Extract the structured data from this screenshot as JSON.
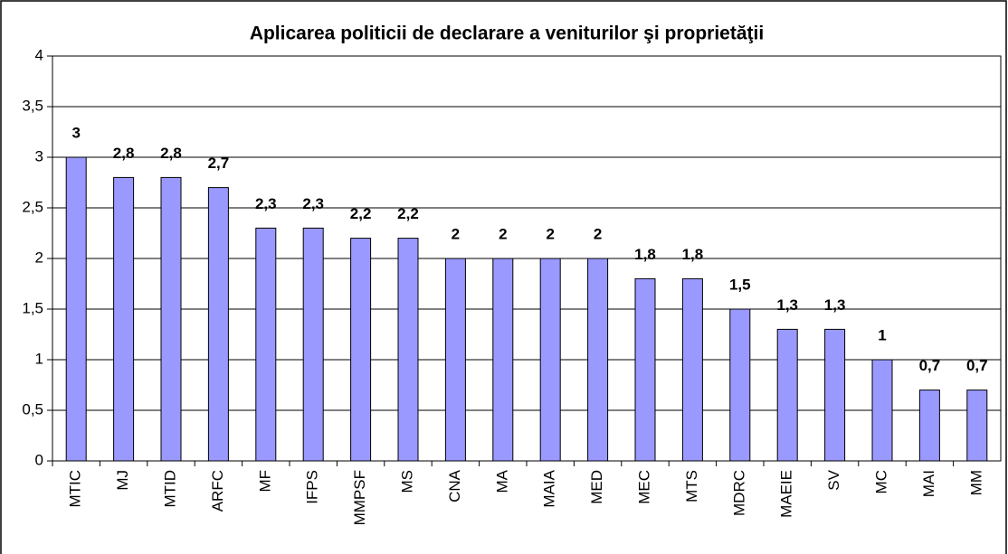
{
  "chart_data": {
    "type": "bar",
    "title": "Aplicarea politicii de declarare a veniturilor şi proprietăţii",
    "categories": [
      "MTIC",
      "MJ",
      "MTID",
      "ARFC",
      "MF",
      "IFPS",
      "MMPSF",
      "MS",
      "CNA",
      "MA",
      "MAIA",
      "MED",
      "MEC",
      "MTS",
      "MDRC",
      "MAEIE",
      "SV",
      "MC",
      "MAI",
      "MM"
    ],
    "values": [
      3,
      2.8,
      2.8,
      2.7,
      2.3,
      2.3,
      2.2,
      2.2,
      2,
      2,
      2,
      2,
      1.8,
      1.8,
      1.5,
      1.3,
      1.3,
      1,
      0.7,
      0.7
    ],
    "value_labels": [
      "3",
      "2,8",
      "2,8",
      "2,7",
      "2,3",
      "2,3",
      "2,2",
      "2,2",
      "2",
      "2",
      "2",
      "2",
      "1,8",
      "1,8",
      "1,5",
      "1,3",
      "1,3",
      "1",
      "0,7",
      "0,7"
    ],
    "color": "#9999ff",
    "ylim": [
      0,
      4
    ],
    "yticks": [
      0,
      {
        "value": 0.5,
        "label": "0,5"
      },
      1,
      {
        "value": 1.5,
        "label": "1,5"
      },
      2,
      {
        "value": 2.5,
        "label": "2,5"
      },
      3,
      {
        "value": 3.5,
        "label": "3,5"
      },
      4
    ],
    "grid": true
  }
}
